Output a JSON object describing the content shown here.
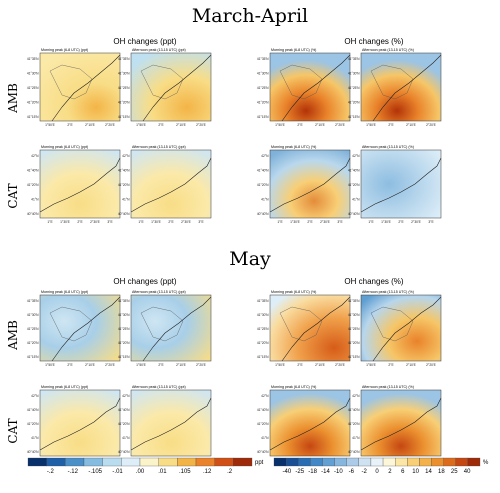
{
  "figure": {
    "sections": [
      {
        "title": "March-April",
        "groups": [
          {
            "title": "OH changes (ppt)",
            "unit": "(ppt)"
          },
          {
            "title": "OH changes (%)",
            "unit": "(%)"
          }
        ],
        "rows": [
          "AMB",
          "CAT"
        ]
      },
      {
        "title": "May",
        "groups": [
          {
            "title": "OH changes (ppt)",
            "unit": "(ppt)"
          },
          {
            "title": "OH changes (%)",
            "unit": "(%)"
          }
        ],
        "rows": [
          "AMB",
          "CAT"
        ]
      }
    ],
    "panel_titles": [
      "Morning peak (6-8 UTC)",
      "Afternoon peak (13-15 UTC)"
    ],
    "amb_ticks": {
      "lat": [
        "41°35'N",
        "41°30'N",
        "41°25'N",
        "41°20'N",
        "41°15'N"
      ],
      "lon": [
        "1°50'E",
        "2°E",
        "2°10'E",
        "2°20'E"
      ]
    },
    "cat_ticks": {
      "lat": [
        "42°N",
        "41°40'N",
        "41°20'N",
        "41°N",
        "40°40'N"
      ],
      "lon": [
        "1°E",
        "1°30'E",
        "2°E",
        "2°30'E",
        "3°E"
      ]
    }
  },
  "colorbars": {
    "ppt": {
      "ticks": [
        "-.2",
        "-.12",
        "-.105",
        "-.01",
        ".00",
        ".01",
        ".105",
        ".12",
        ".2"
      ],
      "unit": "ppt",
      "colors": [
        "#08306b",
        "#1f5fa8",
        "#4a8fc8",
        "#85bce0",
        "#b9dcef",
        "#deeef8",
        "#fbf3c9",
        "#f8dd86",
        "#f3b447",
        "#e9822a",
        "#d04f16",
        "#9e2a0a"
      ]
    },
    "pct": {
      "ticks": [
        "-40",
        "-25",
        "-18",
        "-14",
        "-10",
        "-6",
        "-2",
        "0",
        "2",
        "6",
        "10",
        "14",
        "18",
        "25",
        "40"
      ],
      "unit": "%",
      "colors": [
        "#08306b",
        "#1a4f94",
        "#2a6db3",
        "#4388c6",
        "#629fd2",
        "#86b6de",
        "#abcbe8",
        "#cfe2f2",
        "#e9f2f9",
        "#fdf6d8",
        "#fbe6a5",
        "#f8cf76",
        "#f3b14c",
        "#eb902f",
        "#dc6b1c",
        "#c54712",
        "#9e2a0a"
      ]
    }
  },
  "chart_data": [
    {
      "type": "heatmap",
      "title": "March-April",
      "subtitle": "OH changes (ppt)",
      "row": "AMB",
      "panels": [
        "Morning peak (6-8 UTC)",
        "Afternoon peak (13-15 UTC)"
      ],
      "unit": "ppt",
      "dominant_values": [
        0.01,
        -0.01
      ],
      "max": 0.2,
      "min": -0.2
    },
    {
      "type": "heatmap",
      "title": "March-April",
      "subtitle": "OH changes (%)",
      "row": "AMB",
      "panels": [
        "Morning peak (6-8 UTC)",
        "Afternoon peak (13-15 UTC)"
      ],
      "unit": "%",
      "dominant_values": [
        10,
        -10
      ],
      "max": 40,
      "min": -40
    },
    {
      "type": "heatmap",
      "title": "March-April",
      "subtitle": "OH changes (ppt)",
      "row": "CAT",
      "panels": [
        "Morning peak (6-8 UTC)",
        "Afternoon peak (13-15 UTC)"
      ],
      "unit": "ppt"
    },
    {
      "type": "heatmap",
      "title": "March-April",
      "subtitle": "OH changes (%)",
      "row": "CAT",
      "panels": [
        "Morning peak (6-8 UTC)",
        "Afternoon peak (13-15 UTC)"
      ],
      "unit": "%"
    },
    {
      "type": "heatmap",
      "title": "May",
      "subtitle": "OH changes (ppt)",
      "row": "AMB",
      "panels": [
        "Morning peak (6-8 UTC)",
        "Afternoon peak (13-15 UTC)"
      ],
      "unit": "ppt",
      "max": 0.2,
      "min": -0.2
    },
    {
      "type": "heatmap",
      "title": "May",
      "subtitle": "OH changes (%)",
      "row": "AMB",
      "panels": [
        "Morning peak (6-8 UTC)",
        "Afternoon peak (13-15 UTC)"
      ],
      "unit": "%",
      "max": 40,
      "min": -40
    },
    {
      "type": "heatmap",
      "title": "May",
      "subtitle": "OH changes (ppt)",
      "row": "CAT",
      "panels": [
        "Morning peak (6-8 UTC)",
        "Afternoon peak (13-15 UTC)"
      ],
      "unit": "ppt"
    },
    {
      "type": "heatmap",
      "title": "May",
      "subtitle": "OH changes (%)",
      "row": "CAT",
      "panels": [
        "Morning peak (6-8 UTC)",
        "Afternoon peak (13-15 UTC)"
      ],
      "unit": "%"
    }
  ]
}
